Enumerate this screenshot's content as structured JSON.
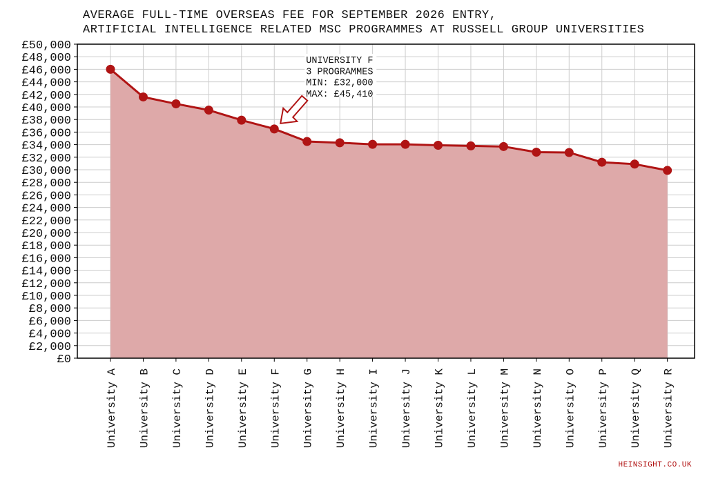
{
  "chart_data": {
    "type": "area",
    "title_line1": "AVERAGE FULL-TIME OVERSEAS FEE FOR SEPTEMBER 2026 ENTRY,",
    "title_line2": "ARTIFICIAL INTELLIGENCE RELATED MSC PROGRAMMES AT RUSSELL GROUP UNIVERSITIES",
    "categories": [
      "University A",
      "University B",
      "University C",
      "University D",
      "University E",
      "University F",
      "University G",
      "University H",
      "University I",
      "University J",
      "University K",
      "University L",
      "University M",
      "University N",
      "University O",
      "University P",
      "University Q",
      "University R"
    ],
    "values": [
      46000,
      41600,
      40500,
      39500,
      37900,
      36500,
      34500,
      34300,
      34050,
      34050,
      33900,
      33800,
      33700,
      32800,
      32750,
      31200,
      30900,
      29900
    ],
    "ylim": [
      0,
      50000
    ],
    "ytick_step": 2000,
    "grid": true,
    "colors": {
      "line": "#b01414",
      "fill": "#dea9a9",
      "grid": "#cccccc"
    },
    "annotation": {
      "category": "University F",
      "lines": [
        "UNIVERSITY F",
        "3 PROGRAMMES",
        "MIN: £32,000",
        "MAX: £45,410"
      ]
    }
  },
  "credit": "HEINSIGHT.CO.UK"
}
